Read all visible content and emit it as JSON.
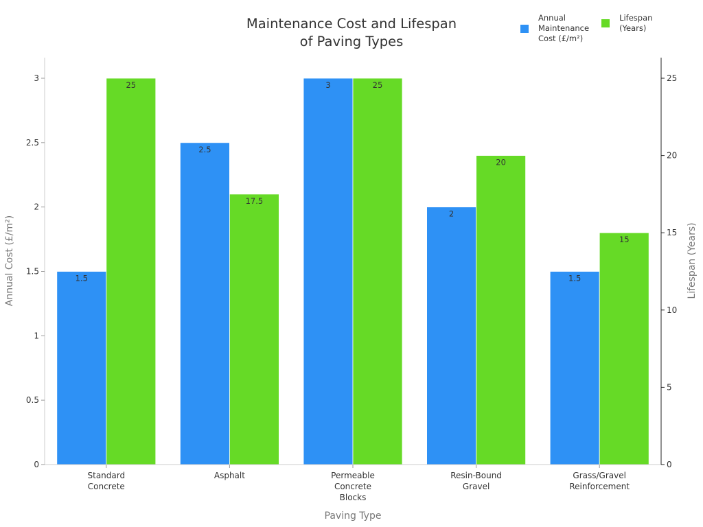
{
  "chart_data": {
    "type": "bar",
    "title": "Maintenance Cost and Lifespan of Paving Types",
    "title_lines": [
      "Maintenance Cost and Lifespan",
      "of Paving Types"
    ],
    "xlabel": "Paving Type",
    "ylabel": "Annual Cost (£/m²)",
    "y2label": "Lifespan (Years)",
    "categories": [
      "Standard Concrete",
      "Asphalt",
      "Permeable Concrete Blocks",
      "Resin-Bound Gravel",
      "Grass/Gravel Reinforcement"
    ],
    "category_lines": [
      [
        "Standard",
        "Concrete"
      ],
      [
        "Asphalt"
      ],
      [
        "Permeable",
        "Concrete",
        "Blocks"
      ],
      [
        "Resin-Bound",
        "Gravel"
      ],
      [
        "Grass/Gravel",
        "Reinforcement"
      ]
    ],
    "series": [
      {
        "name": "Annual Maintenance Cost (£/m²)",
        "axis": "left",
        "color": "#2e91f5",
        "values": [
          1.5,
          2.5,
          3,
          2,
          1.5
        ]
      },
      {
        "name": "Lifespan (Years)",
        "axis": "right",
        "color": "#66da26",
        "values": [
          25,
          17.5,
          25,
          20,
          15
        ]
      }
    ],
    "ylim": [
      0,
      3.16
    ],
    "y2lim": [
      0,
      26.3
    ],
    "yticks": [
      0,
      0.5,
      1,
      1.5,
      2,
      2.5,
      3
    ],
    "ytick_labels": [
      "0",
      "0.5",
      "1",
      "1.5",
      "2",
      "2.5",
      "3"
    ],
    "y2ticks": [
      0,
      5,
      10,
      15,
      20,
      25
    ],
    "y2tick_labels": [
      "0",
      "5",
      "10",
      "15",
      "20",
      "25"
    ],
    "grid": false,
    "legend_position": "top-right",
    "data_labels": true
  },
  "legend": {
    "items": [
      {
        "label": "Annual\nMaintenance\nCost (£/m²)",
        "color": "#2e91f5"
      },
      {
        "label": "Lifespan\n(Years)",
        "color": "#66da26"
      }
    ]
  }
}
